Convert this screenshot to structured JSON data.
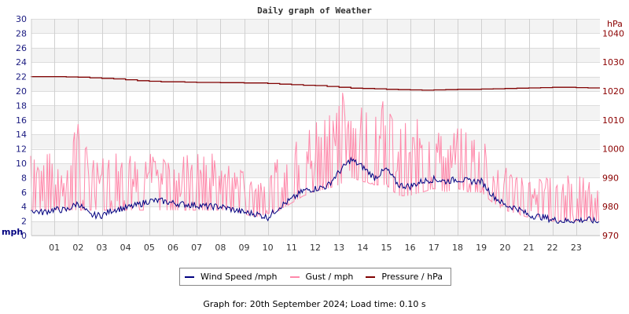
{
  "chart_data": {
    "type": "line",
    "title": "Daily graph of Weather",
    "xlabel": "",
    "ylabel": "mph",
    "ylabel_right": "hPa",
    "ylim": [
      0,
      30
    ],
    "ylim_right": [
      970,
      1045
    ],
    "grid": true,
    "legend_position": "bottom",
    "x_ticks": [
      "01",
      "02",
      "03",
      "04",
      "05",
      "06",
      "07",
      "08",
      "09",
      "10",
      "11",
      "12",
      "13",
      "14",
      "15",
      "16",
      "17",
      "18",
      "19",
      "20",
      "21",
      "22",
      "23"
    ],
    "y_ticks_left": [
      "0",
      "2",
      "4",
      "6",
      "8",
      "10",
      "12",
      "14",
      "16",
      "18",
      "20",
      "22",
      "24",
      "26",
      "28",
      "30"
    ],
    "y_ticks_right": [
      "970",
      "980",
      "990",
      "1000",
      "1010",
      "1020",
      "1030",
      "1040"
    ],
    "x_hours": [
      0,
      0.5,
      1,
      1.5,
      2,
      2.5,
      3,
      3.5,
      4,
      4.5,
      5,
      5.5,
      6,
      6.5,
      7,
      7.5,
      8,
      8.5,
      9,
      9.5,
      10,
      10.5,
      11,
      11.5,
      12,
      12.5,
      13,
      13.5,
      14,
      14.5,
      15,
      15.5,
      16,
      16.5,
      17,
      17.5,
      18,
      18.5,
      19,
      19.5,
      20,
      20.5,
      21,
      21.5,
      22,
      22.5,
      23,
      23.5,
      24
    ],
    "series": [
      {
        "name": "Wind Speed /mph",
        "color": "#000080",
        "axis": "left",
        "values": [
          3.5,
          3.2,
          3.6,
          3.5,
          4.5,
          2.8,
          2.8,
          3.6,
          3.8,
          4.2,
          4.8,
          4.8,
          4.5,
          4.3,
          4.2,
          4.0,
          4.0,
          3.6,
          3.2,
          3.0,
          2.5,
          4.0,
          5.0,
          6.2,
          6.5,
          6.8,
          8.8,
          10.5,
          9.5,
          8.0,
          9.2,
          7.0,
          6.8,
          7.5,
          7.8,
          7.5,
          7.8,
          7.5,
          7.5,
          5.5,
          4.2,
          3.8,
          2.8,
          2.6,
          2.2,
          2.0,
          2.1,
          2.2,
          1.8
        ]
      },
      {
        "name": "Gust / mph",
        "color": "#ff88aa",
        "axis": "left",
        "values_low": [
          3.5,
          3.5,
          3.5,
          3.5,
          3.5,
          3.5,
          3.5,
          3.5,
          3.5,
          3.5,
          3.5,
          3.5,
          3.5,
          3.5,
          3.5,
          3.5,
          3.5,
          3.5,
          3.0,
          2.5,
          3.0,
          3.5,
          4.5,
          5.5,
          6.0,
          6.5,
          7.0,
          8.0,
          7.5,
          7.0,
          7.0,
          5.5,
          5.5,
          6.0,
          6.5,
          6.0,
          6.5,
          6.0,
          6.0,
          4.5,
          3.5,
          3.0,
          2.5,
          2.5,
          2.0,
          2.0,
          2.0,
          2.0,
          2.0
        ],
        "values_high": [
          12.7,
          11.5,
          11.5,
          11.5,
          16.2,
          11.5,
          11.5,
          11.5,
          13.8,
          12.7,
          11.5,
          12.7,
          11.5,
          11.5,
          11.5,
          12.7,
          11.5,
          9.2,
          9.2,
          8.1,
          8.1,
          11.5,
          12.7,
          14.0,
          16.2,
          17.5,
          20.7,
          19.5,
          18.5,
          18.5,
          19.5,
          15.0,
          16.2,
          16.2,
          16.2,
          15.0,
          15.0,
          15.0,
          14.2,
          10.5,
          9.5,
          10.5,
          9.2,
          8.1,
          8.1,
          9.2,
          9.2,
          8.1,
          6.0
        ]
      },
      {
        "name": "Pressure / hPa",
        "color": "#800000",
        "axis": "right",
        "values": [
          1025.0,
          1025.0,
          1025.0,
          1024.9,
          1024.8,
          1024.6,
          1024.4,
          1024.2,
          1023.9,
          1023.6,
          1023.4,
          1023.2,
          1023.2,
          1023.1,
          1023.0,
          1023.0,
          1022.9,
          1022.9,
          1022.8,
          1022.8,
          1022.6,
          1022.4,
          1022.2,
          1022.0,
          1021.9,
          1021.6,
          1021.3,
          1021.0,
          1020.9,
          1020.8,
          1020.6,
          1020.5,
          1020.4,
          1020.3,
          1020.4,
          1020.5,
          1020.6,
          1020.6,
          1020.7,
          1020.8,
          1020.9,
          1021.0,
          1021.1,
          1021.2,
          1021.3,
          1021.3,
          1021.2,
          1021.1,
          1021.1
        ]
      }
    ]
  },
  "header": {
    "title": "Daily graph of Weather"
  },
  "axes": {
    "left_unit": "mph",
    "right_unit": "hPa"
  },
  "legend": {
    "items": [
      {
        "label": "Wind Speed /mph",
        "color": "#000080"
      },
      {
        "label": "Gust / mph",
        "color": "#ff88aa"
      },
      {
        "label": "Pressure / hPa",
        "color": "#800000"
      }
    ]
  },
  "footer": {
    "text": "Graph for: 20th September 2024; Load time: 0.10 s"
  }
}
